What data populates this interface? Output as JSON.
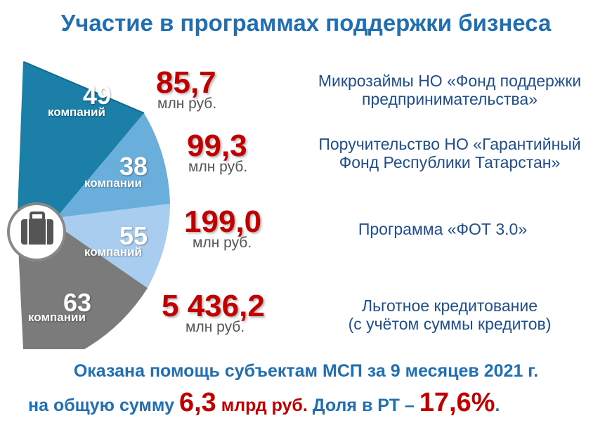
{
  "title": "Участие в программах поддержки бизнеса",
  "segments": [
    {
      "count": "49",
      "word": "компаний",
      "amount": "85,7",
      "unit": "млн руб.",
      "program_line1": "Микрозаймы НО «Фонд поддержки",
      "program_line2": "предпринимательства»",
      "color": "#1b7fa8"
    },
    {
      "count": "38",
      "word": "компании",
      "amount": "99,3",
      "unit": "млн руб.",
      "program_line1": "Поручительство НО «Гарантийный",
      "program_line2": "Фонд Республики Татарстан»",
      "color": "#6aaedc"
    },
    {
      "count": "55",
      "word": "компаний",
      "amount": "199,0",
      "unit": "млн руб.",
      "program_line1": "Программа «ФОТ 3.0»",
      "program_line2": "",
      "color": "#a9cdee"
    },
    {
      "count": "63",
      "word": "компании",
      "amount": "5 436,2",
      "unit": "млн руб.",
      "program_line1": "Льготное кредитование",
      "program_line2": "(с учётом суммы кредитов)",
      "color": "#7b7b7b"
    }
  ],
  "footer": {
    "line1": "Оказана помощь субъектам МСП за 9 месяцев 2021 г.",
    "line2_prefix": "на общую сумму",
    "total_value": "6,3",
    "total_unit": "млрд руб.",
    "share_label": "Доля в РТ –",
    "share_value": "17,6%",
    "end": "."
  },
  "icon": "briefcase-icon"
}
